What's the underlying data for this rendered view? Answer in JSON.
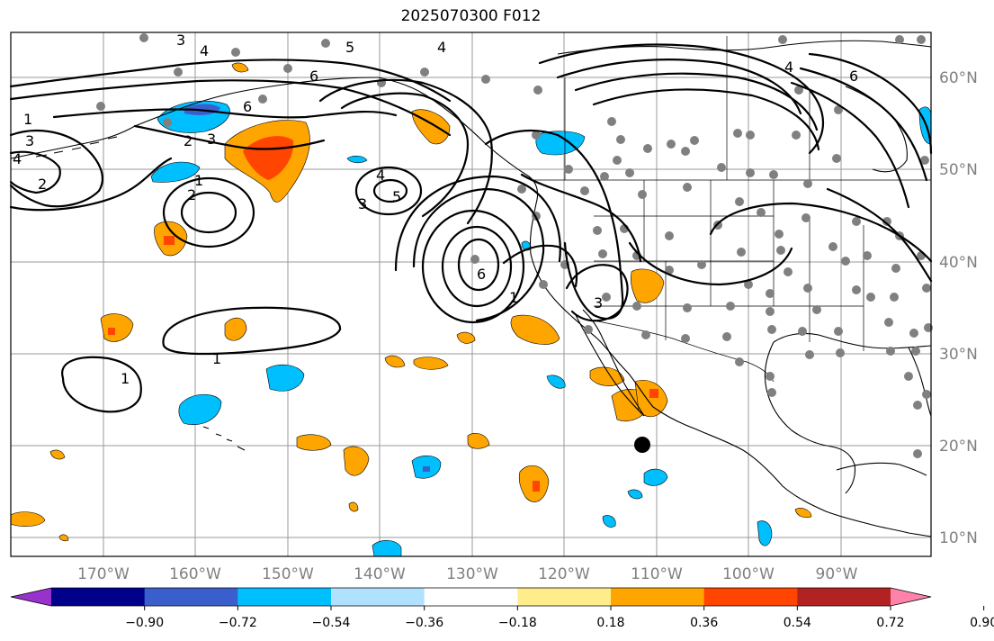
{
  "title": "2025070300 F012",
  "lat_labels": [
    "60°N",
    "50°N",
    "40°N",
    "30°N",
    "20°N",
    "10°N"
  ],
  "lon_labels": [
    "170°W",
    "160°W",
    "150°W",
    "140°W",
    "130°W",
    "120°W",
    "110°W",
    "100°W",
    "90°W"
  ],
  "contour_labels": [
    "1",
    "2",
    "3",
    "4",
    "5",
    "6"
  ],
  "colorbar": {
    "ticks": [
      "−0.90",
      "−0.72",
      "−0.54",
      "−0.36",
      "−0.18",
      "0.18",
      "0.36",
      "0.54",
      "0.72",
      "0.90"
    ],
    "colors": [
      "#9932cc",
      "#00008b",
      "#3a5fcd",
      "#00bfff",
      "#b0e2ff",
      "#ffffff",
      "#ffec8b",
      "#ffa500",
      "#ff4500",
      "#b22222",
      "#ff82ab"
    ]
  },
  "map_colors": {
    "ocean": "#ffffff",
    "grid": "#9a9a9a",
    "station_dot": "#808080",
    "marker": "#000000"
  }
}
